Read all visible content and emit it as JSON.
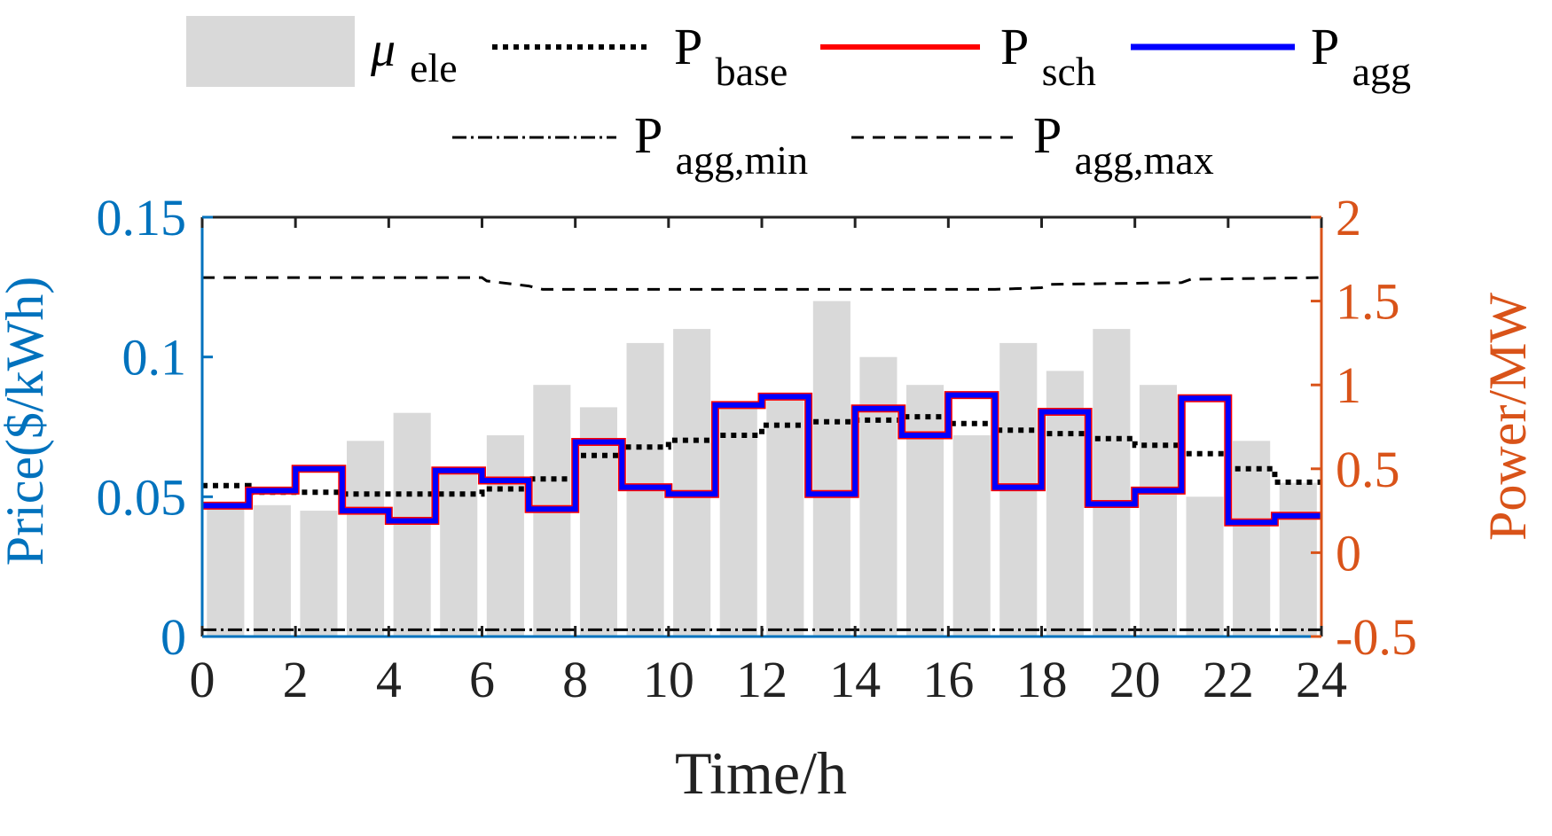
{
  "chart_data": {
    "type": "bar+line",
    "title": "",
    "xlabel": "Time/h",
    "ylabel_left": "Price($/kWh)",
    "ylabel_right": "Power/MW",
    "xlim": [
      0,
      24
    ],
    "ylim_left": [
      0,
      0.15
    ],
    "ylim_right": [
      -0.5,
      2
    ],
    "x_ticks": [
      0,
      2,
      4,
      6,
      8,
      10,
      12,
      14,
      16,
      18,
      20,
      22,
      24
    ],
    "x_tick_labels": [
      "0",
      "2",
      "4",
      "6",
      "8",
      "10",
      "12",
      "14",
      "16",
      "18",
      "20",
      "22",
      "24"
    ],
    "left_ticks": [
      0,
      0.05,
      0.1,
      0.15
    ],
    "left_tick_labels": [
      "0",
      "0.05",
      "0.1",
      "0.15"
    ],
    "right_ticks": [
      -0.5,
      0,
      0.5,
      1,
      1.5,
      2
    ],
    "right_tick_labels": [
      "-0.5",
      "0",
      "0.5",
      "1",
      "1.5",
      "2"
    ],
    "colors": {
      "left_axis": "#0072BD",
      "right_axis": "#D95319",
      "bar": "#D9D9D9",
      "sch": "#FF0000",
      "agg": "#0000FF",
      "black": "#000000"
    },
    "legend": {
      "mu": {
        "main": "μ",
        "sub": "ele"
      },
      "base": {
        "main": "P",
        "sub": "base"
      },
      "sch": {
        "main": "P",
        "sub": "sch"
      },
      "agg": {
        "main": "P",
        "sub": "agg"
      },
      "aggmin": {
        "main": "P",
        "sub": "agg,min"
      },
      "aggmax": {
        "main": "P",
        "sub": "agg,max"
      }
    },
    "series": [
      {
        "name": "μ_ele",
        "axis": "left",
        "kind": "bar",
        "x": [
          0.5,
          1.5,
          2.5,
          3.5,
          4.5,
          5.5,
          6.5,
          7.5,
          8.5,
          9.5,
          10.5,
          11.5,
          12.5,
          13.5,
          14.5,
          15.5,
          16.5,
          17.5,
          18.5,
          19.5,
          20.5,
          21.5,
          22.5,
          23.5
        ],
        "values": [
          0.048,
          0.047,
          0.045,
          0.07,
          0.08,
          0.06,
          0.072,
          0.09,
          0.082,
          0.105,
          0.11,
          0.082,
          0.085,
          0.12,
          0.1,
          0.09,
          0.072,
          0.105,
          0.095,
          0.11,
          0.09,
          0.05,
          0.07,
          0.055
        ]
      },
      {
        "name": "P_base",
        "axis": "right",
        "kind": "dotted-step",
        "values": [
          0.4,
          0.36,
          0.36,
          0.35,
          0.35,
          0.35,
          0.38,
          0.44,
          0.58,
          0.63,
          0.67,
          0.7,
          0.76,
          0.78,
          0.79,
          0.81,
          0.77,
          0.73,
          0.71,
          0.68,
          0.64,
          0.59,
          0.5,
          0.42
        ]
      },
      {
        "name": "P_sch",
        "axis": "right",
        "kind": "step",
        "values": [
          0.28,
          0.37,
          0.5,
          0.25,
          0.19,
          0.49,
          0.43,
          0.26,
          0.66,
          0.39,
          0.35,
          0.88,
          0.93,
          0.35,
          0.86,
          0.7,
          0.94,
          0.39,
          0.84,
          0.29,
          0.37,
          0.92,
          0.18,
          0.22
        ]
      },
      {
        "name": "P_agg",
        "axis": "right",
        "kind": "step",
        "values": [
          0.28,
          0.37,
          0.5,
          0.25,
          0.19,
          0.49,
          0.43,
          0.26,
          0.66,
          0.39,
          0.35,
          0.88,
          0.93,
          0.35,
          0.86,
          0.7,
          0.94,
          0.39,
          0.84,
          0.29,
          0.37,
          0.92,
          0.18,
          0.22
        ]
      },
      {
        "name": "P_agg,min",
        "axis": "right",
        "kind": "dashdot",
        "values": [
          -0.46,
          -0.46,
          -0.46,
          -0.46,
          -0.46,
          -0.46,
          -0.46,
          -0.46,
          -0.46,
          -0.46,
          -0.46,
          -0.46,
          -0.46,
          -0.46,
          -0.46,
          -0.46,
          -0.46,
          -0.46,
          -0.46,
          -0.46,
          -0.46,
          -0.46,
          -0.46,
          -0.46
        ]
      },
      {
        "name": "P_agg,max",
        "axis": "right",
        "kind": "dashed",
        "x": [
          0,
          6,
          6.1,
          7,
          7.3,
          16.5,
          17,
          18,
          18.2,
          21,
          21.2,
          24
        ],
        "values": [
          1.64,
          1.64,
          1.62,
          1.59,
          1.57,
          1.57,
          1.57,
          1.58,
          1.6,
          1.61,
          1.63,
          1.64
        ]
      }
    ]
  }
}
